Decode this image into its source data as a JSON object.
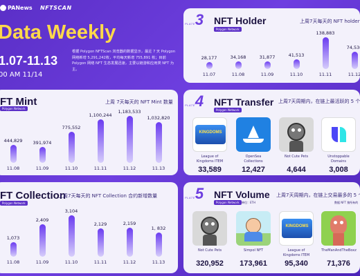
{
  "header": {
    "logo_panews": "PANews",
    "logo_nftscan": "NFTSCAN",
    "title": "Data Weekly",
    "date_range": "1.07-11.13",
    "update_time": "00 AM 11/14",
    "intro": "根据 Polygon NFTScan 浏览器的数据显示，最近 7 天 Polygon 网络新增 5,291,242枚，平均每天新增 755,891 枚；目前 Polygon 网络 NFT 生态发展迅速，主要以链游和应用类 NFT 为主。"
  },
  "holder": {
    "plate_word": "PLATE",
    "plate_num": "3",
    "title": "NFT Holder",
    "tag": "Polygon Network",
    "subtitle": "上周7天每天的 NFT holder 数",
    "chart_data": {
      "type": "bar",
      "categories": [
        "11.07",
        "11.08",
        "11.09",
        "11.10",
        "11.11",
        "11.12"
      ],
      "values": [
        28177,
        34168,
        31877,
        41513,
        138883,
        74536
      ],
      "labels": [
        "28,177",
        "34,168",
        "31,877",
        "41,513",
        "138,883",
        "74,536"
      ]
    }
  },
  "mint": {
    "title": "FT Mint",
    "tag": "Polygon Network",
    "subtitle": "上周 7天每天的 NFT Mint 数量",
    "chart_data": {
      "type": "bar",
      "categories": [
        "11.08",
        "11.09",
        "11.10",
        "11.11",
        "11.12",
        "11.13"
      ],
      "values": [
        444829,
        391974,
        775552,
        1100244,
        1183533,
        1032820
      ],
      "labels": [
        "444,829",
        "391,974",
        "775,552",
        "1,100,244",
        "1,183,533",
        "1,032,820"
      ]
    }
  },
  "transfer": {
    "plate_word": "PLATE",
    "plate_num": "4",
    "title": "NFT Transfer",
    "tag": "Polygon Network",
    "subtitle": "上周7天周期内，在链上最活跃的 5 个",
    "items": [
      {
        "name": "League of Kingdoms ITEM",
        "value": "33,589"
      },
      {
        "name": "OpenSea Collections",
        "value": "12,427"
      },
      {
        "name": "Not Cute Pets",
        "value": "4,644"
      },
      {
        "name": "Unstoppable Domains",
        "value": "3,008"
      }
    ]
  },
  "collection": {
    "title": "FT Collection",
    "tag": "Polygon Network",
    "subtitle": "上周7天每天的 NFT Collection 合约新增数量",
    "chart_data": {
      "type": "bar",
      "categories": [
        "11.08",
        "11.09",
        "11.10",
        "11.11",
        "11.12",
        "11.13"
      ],
      "values": [
        1073,
        2409,
        3104,
        2129,
        2159,
        1832
      ],
      "labels": [
        "1,073",
        "2,409",
        "3,104",
        "2,129",
        "2,159",
        "1, 832"
      ]
    }
  },
  "volume": {
    "plate_word": "PLATE",
    "plate_num": "5",
    "title": "NFT Volume",
    "tag": "Polygon Network",
    "unit": "单位：ETH",
    "subtitle": "上周7天周期内，在链上交易最多的 5 个",
    "note": "数据 NFT 按所有的",
    "items": [
      {
        "name": "Not Cute Pets",
        "value": "320,952"
      },
      {
        "name": "Simpol NFT",
        "value": "173,961"
      },
      {
        "name": "League of Kingdoms ITEM",
        "value": "95,340"
      },
      {
        "name": "TheManAndTheBoxz",
        "value": "71,376"
      }
    ]
  },
  "colors": {
    "background": "#5b2fc7",
    "card": "#f3f1fb",
    "accent": "#6e3fe0",
    "bar_top": "#6b3cf0",
    "bar_bottom": "#d6cdfb",
    "title_text": "#1b1240"
  }
}
